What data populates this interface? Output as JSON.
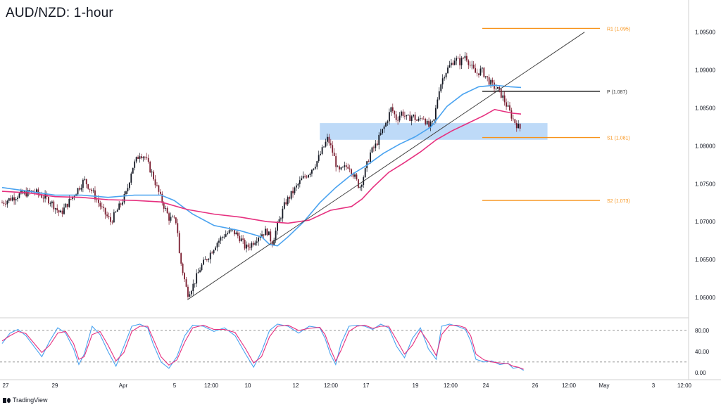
{
  "header": {
    "title": "AUD/NZD: 1-hour"
  },
  "brand": {
    "name": "TradingView"
  },
  "colors": {
    "bull": "#131722",
    "bear": "#7a1d2f",
    "ema_fast": "#4aa3f0",
    "ema_slow": "#e6307f",
    "level": "#f7931a",
    "pivot": "#333333",
    "zone": "#a8cdf5",
    "trend": "#444444",
    "stoch_k": "#4aa3f0",
    "stoch_d": "#e6307f",
    "grid": "#d0d0d0",
    "axis_text": "#131722"
  },
  "chart_data": [
    {
      "type": "candlestick",
      "title": "AUD/NZD: 1-hour",
      "x_tick_labels": [
        "27",
        "29",
        "Apr",
        "5",
        "12:00",
        "10",
        "12",
        "12:00",
        "17",
        "19",
        "12:00",
        "24",
        "26",
        "12:00",
        "May",
        "3",
        "12:00"
      ],
      "y_tick_labels": [
        "1.09500",
        "1.09000",
        "1.08500",
        "1.08000",
        "1.07500",
        "1.07000",
        "1.06500",
        "1.06000"
      ],
      "ylim": [
        1.0575,
        1.0985
      ],
      "grid": false,
      "close_path": [
        [
          0,
          1.0725
        ],
        [
          6,
          1.0735
        ],
        [
          12,
          1.074
        ],
        [
          18,
          1.0728
        ],
        [
          22,
          1.071
        ],
        [
          27,
          1.0735
        ],
        [
          31,
          1.0755
        ],
        [
          34,
          1.074
        ],
        [
          38,
          1.0715
        ],
        [
          41,
          1.07
        ],
        [
          44,
          1.0718
        ],
        [
          47,
          1.0738
        ],
        [
          49,
          1.077
        ],
        [
          52,
          1.079
        ],
        [
          54,
          1.0785
        ],
        [
          57,
          1.076
        ],
        [
          60,
          1.073
        ],
        [
          63,
          1.0705
        ],
        [
          66,
          1.07
        ],
        [
          67,
          1.0655
        ],
        [
          70,
          1.0605
        ],
        [
          72,
          1.0615
        ],
        [
          75,
          1.064
        ],
        [
          78,
          1.0655
        ],
        [
          81,
          1.0672
        ],
        [
          84,
          1.0683
        ],
        [
          87,
          1.0688
        ],
        [
          90,
          1.0678
        ],
        [
          92,
          1.0665
        ],
        [
          94,
          1.067
        ],
        [
          97,
          1.0682
        ],
        [
          100,
          1.0688
        ],
        [
          102,
          1.0672
        ],
        [
          104,
          1.0695
        ],
        [
          107,
          1.0725
        ],
        [
          110,
          1.074
        ],
        [
          113,
          1.0755
        ],
        [
          116,
          1.0765
        ],
        [
          119,
          1.078
        ],
        [
          121,
          1.0795
        ],
        [
          123,
          1.081
        ],
        [
          125,
          1.079
        ],
        [
          127,
          1.0765
        ],
        [
          129,
          1.077
        ],
        [
          131,
          1.0775
        ],
        [
          133,
          1.076
        ],
        [
          135,
          1.0745
        ],
        [
          137,
          1.0765
        ],
        [
          139,
          1.079
        ],
        [
          141,
          1.08
        ],
        [
          143,
          1.0815
        ],
        [
          145,
          1.083
        ],
        [
          147,
          1.085
        ],
        [
          149,
          1.0835
        ],
        [
          151,
          1.0845
        ],
        [
          153,
          1.0835
        ],
        [
          155,
          1.084
        ],
        [
          157,
          1.0832
        ],
        [
          159,
          1.084
        ],
        [
          161,
          1.0825
        ],
        [
          163,
          1.083
        ],
        [
          165,
          1.0875
        ],
        [
          167,
          1.0895
        ],
        [
          169,
          1.0905
        ],
        [
          171,
          1.0915
        ],
        [
          173,
          1.091
        ],
        [
          175,
          1.092
        ],
        [
          177,
          1.0905
        ],
        [
          179,
          1.0895
        ],
        [
          181,
          1.09
        ],
        [
          183,
          1.089
        ],
        [
          185,
          1.088
        ],
        [
          187,
          1.0875
        ],
        [
          189,
          1.0865
        ],
        [
          191,
          1.085
        ],
        [
          193,
          1.0835
        ],
        [
          195,
          1.0825
        ],
        [
          196,
          1.0822
        ]
      ],
      "series": [
        {
          "name": "",
          "style": "line",
          "color_key": "ema_fast",
          "points": [
            [
              0,
              1.0745
            ],
            [
              10,
              1.074
            ],
            [
              20,
              1.0735
            ],
            [
              30,
              1.0735
            ],
            [
              40,
              1.0732
            ],
            [
              50,
              1.0735
            ],
            [
              60,
              1.0735
            ],
            [
              65,
              1.0728
            ],
            [
              72,
              1.071
            ],
            [
              80,
              1.0695
            ],
            [
              90,
              1.0688
            ],
            [
              98,
              1.068
            ],
            [
              101,
              1.067
            ],
            [
              104,
              1.0668
            ],
            [
              108,
              1.068
            ],
            [
              114,
              1.07
            ],
            [
              120,
              1.0725
            ],
            [
              126,
              1.0745
            ],
            [
              132,
              1.0762
            ],
            [
              138,
              1.0775
            ],
            [
              144,
              1.079
            ],
            [
              150,
              1.0802
            ],
            [
              156,
              1.0812
            ],
            [
              162,
              1.0825
            ],
            [
              168,
              1.0852
            ],
            [
              174,
              1.0868
            ],
            [
              180,
              1.0878
            ],
            [
              186,
              1.088
            ],
            [
              192,
              1.0878
            ],
            [
              196,
              1.0877
            ]
          ]
        },
        {
          "name": "",
          "style": "line",
          "color_key": "ema_slow",
          "points": [
            [
              0,
              1.074
            ],
            [
              10,
              1.0738
            ],
            [
              20,
              1.0733
            ],
            [
              30,
              1.0732
            ],
            [
              40,
              1.0729
            ],
            [
              50,
              1.0728
            ],
            [
              60,
              1.0726
            ],
            [
              70,
              1.0716
            ],
            [
              80,
              1.071
            ],
            [
              90,
              1.0706
            ],
            [
              100,
              1.07
            ],
            [
              108,
              1.0698
            ],
            [
              116,
              1.0702
            ],
            [
              124,
              1.0715
            ],
            [
              132,
              1.072
            ],
            [
              136,
              1.073
            ],
            [
              140,
              1.0745
            ],
            [
              146,
              1.0765
            ],
            [
              152,
              1.0778
            ],
            [
              158,
              1.0792
            ],
            [
              164,
              1.0808
            ],
            [
              170,
              1.082
            ],
            [
              176,
              1.083
            ],
            [
              182,
              1.084
            ],
            [
              186,
              1.0848
            ],
            [
              190,
              1.0845
            ],
            [
              193,
              1.0843
            ],
            [
              196,
              1.0842
            ]
          ]
        },
        {
          "name": "",
          "style": "trendline",
          "color_key": "trend",
          "points": [
            [
              70,
              1.0597
            ],
            [
              220,
              1.095
            ]
          ]
        }
      ],
      "levels": [
        {
          "label": "R1 (1.095)",
          "value": 1.0955,
          "color_key": "level"
        },
        {
          "label": "P (1.087)",
          "value": 1.0872,
          "color_key": "pivot"
        },
        {
          "label": "S1 (1.081)",
          "value": 1.0811,
          "color_key": "level"
        },
        {
          "label": "S2 (1.073)",
          "value": 1.0728,
          "color_key": "level"
        }
      ],
      "zone": {
        "x": [
          120,
          206
        ],
        "y": [
          1.0808,
          1.083
        ]
      },
      "x_range": [
        0,
        264
      ]
    },
    {
      "type": "line",
      "title": "",
      "y_tick_labels": [
        "80.00",
        "40.00",
        "0.00"
      ],
      "ylim": [
        -3,
        100
      ],
      "reference_lines": [
        80,
        20
      ],
      "series": [
        {
          "name": "",
          "color_key": "stoch_k",
          "points": [
            [
              0,
              55
            ],
            [
              3,
              75
            ],
            [
              6,
              82
            ],
            [
              9,
              70
            ],
            [
              12,
              50
            ],
            [
              15,
              30
            ],
            [
              18,
              60
            ],
            [
              21,
              85
            ],
            [
              24,
              75
            ],
            [
              27,
              45
            ],
            [
              29,
              15
            ],
            [
              31,
              35
            ],
            [
              34,
              88
            ],
            [
              37,
              72
            ],
            [
              40,
              40
            ],
            [
              43,
              12
            ],
            [
              46,
              50
            ],
            [
              49,
              88
            ],
            [
              52,
              92
            ],
            [
              55,
              85
            ],
            [
              57,
              55
            ],
            [
              60,
              20
            ],
            [
              63,
              8
            ],
            [
              66,
              30
            ],
            [
              69,
              70
            ],
            [
              72,
              90
            ],
            [
              76,
              88
            ],
            [
              80,
              78
            ],
            [
              84,
              85
            ],
            [
              88,
              70
            ],
            [
              92,
              35
            ],
            [
              95,
              10
            ],
            [
              98,
              40
            ],
            [
              101,
              80
            ],
            [
              104,
              92
            ],
            [
              108,
              88
            ],
            [
              112,
              75
            ],
            [
              116,
              88
            ],
            [
              120,
              85
            ],
            [
              122,
              65
            ],
            [
              124,
              35
            ],
            [
              126,
              15
            ],
            [
              128,
              55
            ],
            [
              131,
              88
            ],
            [
              134,
              90
            ],
            [
              137,
              88
            ],
            [
              140,
              82
            ],
            [
              143,
              92
            ],
            [
              146,
              85
            ],
            [
              149,
              50
            ],
            [
              152,
              28
            ],
            [
              155,
              65
            ],
            [
              158,
              85
            ],
            [
              161,
              45
            ],
            [
              164,
              25
            ],
            [
              166,
              88
            ],
            [
              169,
              92
            ],
            [
              172,
              88
            ],
            [
              175,
              82
            ],
            [
              177,
              60
            ],
            [
              179,
              25
            ],
            [
              182,
              20
            ],
            [
              185,
              22
            ],
            [
              188,
              15
            ],
            [
              191,
              18
            ],
            [
              193,
              8
            ],
            [
              195,
              10
            ],
            [
              197,
              4
            ]
          ]
        },
        {
          "name": "",
          "color_key": "stoch_d",
          "points": [
            [
              0,
              60
            ],
            [
              3,
              70
            ],
            [
              6,
              78
            ],
            [
              9,
              74
            ],
            [
              12,
              56
            ],
            [
              15,
              38
            ],
            [
              18,
              52
            ],
            [
              21,
              75
            ],
            [
              24,
              78
            ],
            [
              27,
              55
            ],
            [
              29,
              25
            ],
            [
              31,
              30
            ],
            [
              34,
              72
            ],
            [
              37,
              78
            ],
            [
              40,
              52
            ],
            [
              43,
              22
            ],
            [
              46,
              38
            ],
            [
              49,
              78
            ],
            [
              52,
              88
            ],
            [
              55,
              88
            ],
            [
              57,
              65
            ],
            [
              60,
              30
            ],
            [
              63,
              14
            ],
            [
              66,
              24
            ],
            [
              69,
              58
            ],
            [
              72,
              85
            ],
            [
              76,
              90
            ],
            [
              80,
              82
            ],
            [
              84,
              82
            ],
            [
              88,
              76
            ],
            [
              92,
              45
            ],
            [
              95,
              18
            ],
            [
              98,
              30
            ],
            [
              101,
              68
            ],
            [
              104,
              88
            ],
            [
              108,
              90
            ],
            [
              112,
              80
            ],
            [
              116,
              84
            ],
            [
              120,
              86
            ],
            [
              122,
              72
            ],
            [
              124,
              45
            ],
            [
              126,
              22
            ],
            [
              128,
              42
            ],
            [
              131,
              78
            ],
            [
              134,
              88
            ],
            [
              137,
              90
            ],
            [
              140,
              84
            ],
            [
              143,
              88
            ],
            [
              146,
              88
            ],
            [
              149,
              62
            ],
            [
              152,
              35
            ],
            [
              155,
              52
            ],
            [
              158,
              80
            ],
            [
              161,
              58
            ],
            [
              164,
              32
            ],
            [
              166,
              72
            ],
            [
              169,
              90
            ],
            [
              172,
              90
            ],
            [
              175,
              85
            ],
            [
              177,
              70
            ],
            [
              179,
              35
            ],
            [
              182,
              24
            ],
            [
              185,
              20
            ],
            [
              188,
              18
            ],
            [
              191,
              17
            ],
            [
              193,
              12
            ],
            [
              195,
              10
            ],
            [
              197,
              6
            ]
          ]
        }
      ]
    }
  ]
}
